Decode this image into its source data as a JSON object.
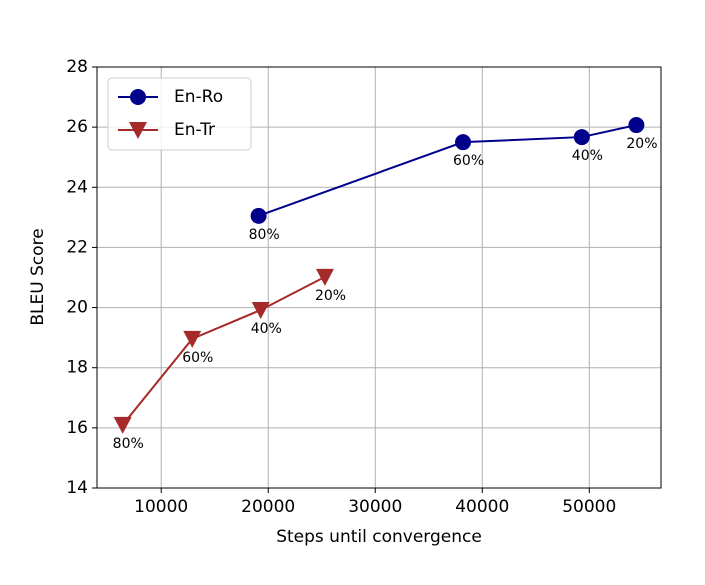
{
  "chart_data": {
    "type": "line",
    "x_label": "Steps until convergence",
    "y_label": "BLEU Score",
    "xlim": [
      4000,
      56700
    ],
    "xticks": [
      10000,
      20000,
      30000,
      40000,
      50000
    ],
    "ylim": [
      14,
      28
    ],
    "yticks": [
      14,
      16,
      18,
      20,
      22,
      24,
      26,
      28
    ],
    "grid": true,
    "legend": "upper-left",
    "series": [
      {
        "name": "En-Ro",
        "color": "#00008b",
        "marker": "circle",
        "x": [
          19100,
          38200,
          49300,
          54400
        ],
        "values": [
          23.05,
          25.5,
          25.67,
          26.07
        ],
        "annotations": [
          "80%",
          "60%",
          "40%",
          "20%"
        ]
      },
      {
        "name": "En-Tr",
        "color": "#a52a2a",
        "marker": "triangle-down",
        "x": [
          6400,
          12900,
          19300,
          25300
        ],
        "values": [
          16.1,
          18.96,
          19.92,
          21.02
        ],
        "annotations": [
          "80%",
          "60%",
          "40%",
          "20%"
        ]
      }
    ]
  }
}
